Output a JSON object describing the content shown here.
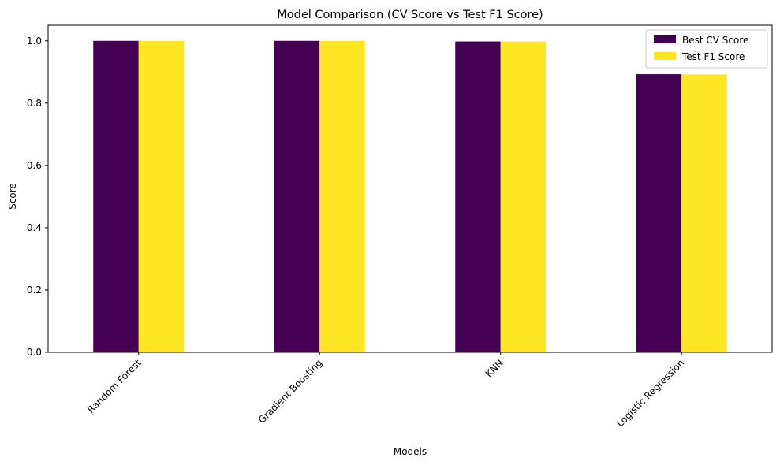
{
  "chart_data": {
    "type": "bar",
    "title": "Model Comparison (CV Score vs Test F1 Score)",
    "xlabel": "Models",
    "ylabel": "Score",
    "categories": [
      "Random Forest",
      "Gradient Boosting",
      "KNN",
      "Logistic Regression"
    ],
    "series": [
      {
        "name": "Best CV Score",
        "color": "#440154",
        "values": [
          1.0,
          1.0,
          0.998,
          0.893
        ]
      },
      {
        "name": "Test F1 Score",
        "color": "#fde725",
        "values": [
          1.0,
          1.0,
          0.998,
          0.892
        ]
      }
    ],
    "ylim": [
      0,
      1.05
    ],
    "yticks": [
      0.0,
      0.2,
      0.4,
      0.6,
      0.8,
      1.0
    ],
    "ytick_labels": [
      "0.0",
      "0.2",
      "0.4",
      "0.6",
      "0.8",
      "1.0"
    ],
    "grid": false,
    "legend_position": "top-right",
    "xtick_rotation_deg": 45
  }
}
